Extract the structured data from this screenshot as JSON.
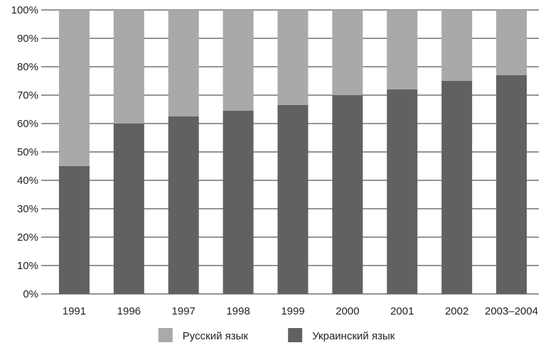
{
  "chart_data": {
    "type": "bar",
    "stacked": true,
    "percent": true,
    "categories": [
      "1991",
      "1996",
      "1997",
      "1998",
      "1999",
      "2000",
      "2001",
      "2002",
      "2003–2004"
    ],
    "series": [
      {
        "name": "Украинский язык",
        "color": "#616161",
        "values": [
          45,
          60,
          62.5,
          64.5,
          66.5,
          70,
          72,
          75,
          77
        ]
      },
      {
        "name": "Русский язык",
        "color": "#a9a9ab",
        "values": [
          55,
          40,
          37.5,
          35.5,
          33.5,
          30,
          28,
          25,
          23
        ]
      }
    ],
    "ylim": [
      0,
      100
    ],
    "yticks": [
      "0%",
      "10%",
      "20%",
      "30%",
      "40%",
      "50%",
      "60%",
      "70%",
      "80%",
      "90%",
      "100%"
    ],
    "grid": true,
    "legend": [
      {
        "name": "Русский язык",
        "color": "#a9a9ab"
      },
      {
        "name": "Украинский язык",
        "color": "#616161"
      }
    ],
    "legend_position": "bottom"
  }
}
